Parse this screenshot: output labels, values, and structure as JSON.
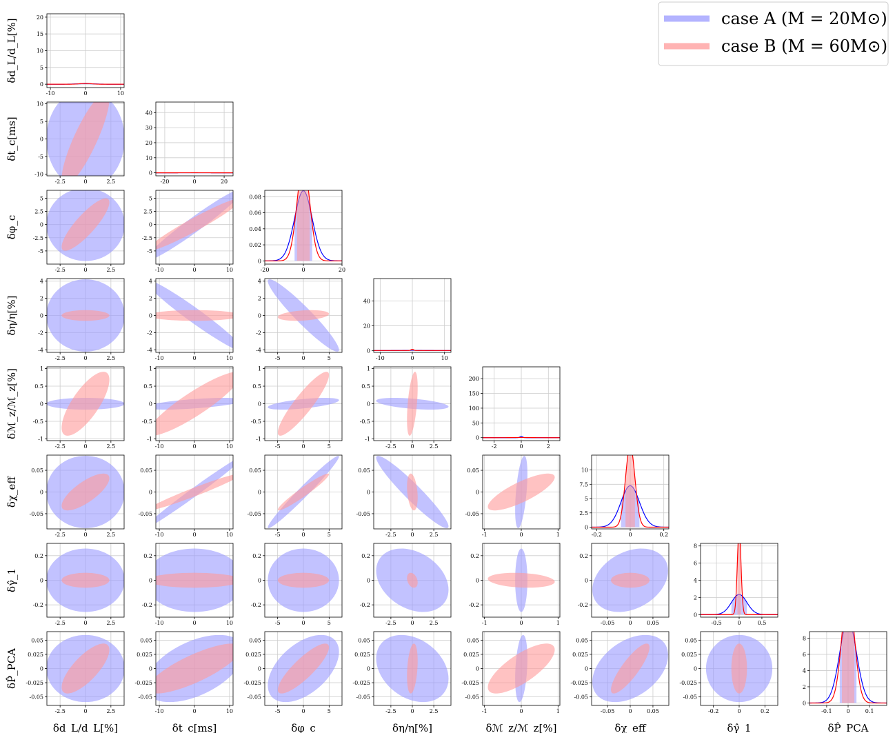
{
  "colors": {
    "case_a": "#0000ff",
    "case_a_fill": "#9999ff",
    "case_b": "#ff0000",
    "case_b_fill": "#ff9999",
    "grid": "#cccccc",
    "frame": "#000000"
  },
  "legend": {
    "placement": "top-right",
    "entries": [
      "case A (M = 20M⊙)",
      "case B (M = 60M⊙)"
    ]
  },
  "chart_data": {
    "type": "corner",
    "grid": true,
    "series": [
      {
        "name": "case A (M = 20M⊙)",
        "sigma": [
          2.54,
          9.3,
          4.56,
          2.78,
          0.11,
          0.055,
          0.17,
          0.039
        ]
      },
      {
        "name": "case B (M = 60M⊙)",
        "sigma": [
          1.55,
          8.8,
          3.28,
          0.41,
          0.6,
          0.028,
          0.04,
          0.029
        ]
      }
    ],
    "parameters": [
      {
        "label": "δd_L/d_L[%]",
        "range": [
          -11,
          11
        ],
        "ticks": [
          -2.5,
          0,
          2.5
        ],
        "hist_ticks": [
          -10.0,
          0.0,
          10.0
        ],
        "hist_ylim": [
          -1,
          21
        ],
        "hist_yticks": [
          0.0,
          5.0,
          10.0,
          15.0,
          20.0
        ]
      },
      {
        "label": "δt_c[ms]",
        "range": [
          -26,
          26
        ],
        "ticks": [
          -10.0,
          0.0,
          10.0
        ],
        "hist_ticks": [
          -20.0,
          0.0,
          20.0
        ],
        "hist_ylim": [
          -2,
          47
        ],
        "hist_yticks": [
          0.0,
          10.0,
          20.0,
          30.0,
          40.0
        ]
      },
      {
        "label": "δφ_c",
        "range": [
          -20,
          20
        ],
        "ticks": [
          -5,
          0,
          5
        ],
        "hist_ticks": [
          -20,
          0,
          20
        ],
        "hist_ylim": [
          -0.004,
          0.088
        ],
        "hist_yticks": [
          0.0,
          0.02,
          0.04,
          0.06,
          0.08
        ]
      },
      {
        "label": "δη/η[%]",
        "range": [
          -12,
          12
        ],
        "ticks": [
          -2.5,
          0.0,
          2.5
        ],
        "hist_ticks": [
          -10.0,
          0.0,
          10.0
        ],
        "hist_ylim": [
          -1.5,
          58
        ],
        "hist_yticks": [
          0.0,
          20.0,
          40.0
        ]
      },
      {
        "label": "δℳ_z/ℳ_z[%]",
        "range": [
          -2.85,
          2.85
        ],
        "ticks": [
          -1.0,
          0.0,
          1.0
        ],
        "hist_ticks": [
          -2.0,
          0.0,
          2.0
        ],
        "hist_ylim": [
          -10,
          240
        ],
        "hist_yticks": [
          0.0,
          50.0,
          100.0,
          150.0,
          200.0
        ]
      },
      {
        "label": "δχ_eff",
        "range": [
          -0.23,
          0.23
        ],
        "ticks": [
          -0.05,
          0.0,
          0.05
        ],
        "hist_ticks": [
          -0.2,
          0.0,
          0.2
        ],
        "hist_ylim": [
          -0.3,
          12.6
        ],
        "hist_yticks": [
          0.0,
          2.5,
          5.0,
          7.5,
          10.0
        ]
      },
      {
        "label": "δγ̂_1",
        "range": [
          -0.85,
          0.85
        ],
        "ticks": [
          -0.2,
          0.0,
          0.2
        ],
        "hist_ticks": [
          -0.5,
          0.0,
          0.5
        ],
        "hist_ylim": [
          -0.3,
          8.3
        ],
        "hist_yticks": [
          0,
          2,
          4,
          6,
          8
        ]
      },
      {
        "label": "δP̂_PCA",
        "range": [
          -0.18,
          0.18
        ],
        "ticks": [
          -0.05,
          0.0,
          0.05
        ],
        "hist_ticks": [
          -0.1,
          0.0,
          0.1
        ],
        "hist_ylim": [
          -0.3,
          8.8
        ],
        "hist_yticks": [
          0,
          2,
          4,
          6,
          8
        ]
      }
    ],
    "pairs": [
      {
        "x": 0,
        "y": 1,
        "xlim": [
          -3.8,
          3.8
        ],
        "ylim": [
          -10.5,
          10.5
        ],
        "yticks": [
          -10.0,
          -5.0,
          0.0,
          5.0,
          10.0
        ],
        "a_rho": 0.0,
        "b_rho": 0.85
      },
      {
        "x": 0,
        "y": 2,
        "xlim": [
          -3.8,
          3.8
        ],
        "ylim": [
          -7.5,
          6.5
        ],
        "yticks": [
          -5.0,
          -2.5,
          0.0,
          2.5,
          5.0
        ],
        "a_rho": 0.0,
        "b_rho": 0.85
      },
      {
        "x": 1,
        "y": 2,
        "xlim": [
          -11,
          11
        ],
        "ylim": [
          -7.5,
          6.5
        ],
        "yticks": [
          -5.0,
          -2.5,
          0.0,
          2.5,
          5.0
        ],
        "a_rho": 0.97,
        "b_rho": 0.96
      },
      {
        "x": 0,
        "y": 3,
        "xlim": [
          -3.8,
          3.8
        ],
        "ylim": [
          -4.3,
          4.3
        ],
        "yticks": [
          -4.0,
          -2.0,
          0.0,
          2.0,
          4.0
        ],
        "a_rho": 0.0,
        "b_rho": 0.0
      },
      {
        "x": 1,
        "y": 3,
        "xlim": [
          -11,
          11
        ],
        "ylim": [
          -4.3,
          4.3
        ],
        "yticks": [
          -4.0,
          -2.0,
          0.0,
          2.0,
          4.0
        ],
        "a_rho": -0.97,
        "b_rho": 0.0
      },
      {
        "x": 2,
        "y": 3,
        "xlim": [
          -7.5,
          7.5
        ],
        "ylim": [
          -4.3,
          4.3
        ],
        "yticks": [
          -4.0,
          -2.0,
          0.0,
          2.0,
          4.0
        ],
        "a_rho": -0.95,
        "b_rho": 0.3
      },
      {
        "x": 0,
        "y": 4,
        "xlim": [
          -3.8,
          3.8
        ],
        "ylim": [
          -1.05,
          1.05
        ],
        "yticks": [
          -1.0,
          -0.5,
          0.0,
          0.5,
          1.0
        ],
        "a_rho": 0.0,
        "b_rho": 0.75
      },
      {
        "x": 1,
        "y": 4,
        "xlim": [
          -11,
          11
        ],
        "ylim": [
          -1.05,
          1.05
        ],
        "yticks": [
          -1.0,
          -0.5,
          0.0,
          0.5,
          1.0
        ],
        "a_rho": 0.6,
        "b_rho": 0.9
      },
      {
        "x": 2,
        "y": 4,
        "xlim": [
          -7.5,
          7.5
        ],
        "ylim": [
          -1.05,
          1.05
        ],
        "yticks": [
          -1.0,
          -0.5,
          0.0,
          0.5,
          1.0
        ],
        "a_rho": 0.6,
        "b_rho": 0.9
      },
      {
        "x": 3,
        "y": 4,
        "xlim": [
          -4.5,
          4.5
        ],
        "ylim": [
          -1.05,
          1.05
        ],
        "yticks": [
          -1.0,
          -0.5,
          0.0,
          0.5,
          1.0
        ],
        "a_rho": -0.5,
        "b_rho": 0.5
      },
      {
        "x": 0,
        "y": 5,
        "xlim": [
          -3.8,
          3.8
        ],
        "ylim": [
          -0.085,
          0.085
        ],
        "yticks": [
          -0.05,
          0.0,
          0.05
        ],
        "a_rho": 0.0,
        "b_rho": 0.75
      },
      {
        "x": 1,
        "y": 5,
        "xlim": [
          -11,
          11
        ],
        "ylim": [
          -0.085,
          0.085
        ],
        "yticks": [
          -0.05,
          0.0,
          0.05
        ],
        "a_rho": 0.99,
        "b_rho": 0.97
      },
      {
        "x": 2,
        "y": 5,
        "xlim": [
          -7.5,
          7.5
        ],
        "ylim": [
          -0.085,
          0.085
        ],
        "yticks": [
          -0.05,
          0.0,
          0.05
        ],
        "a_rho": 0.98,
        "b_rho": 0.96
      },
      {
        "x": 3,
        "y": 5,
        "xlim": [
          -4.5,
          4.5
        ],
        "ylim": [
          -0.085,
          0.085
        ],
        "yticks": [
          -0.05,
          0.0,
          0.05
        ],
        "a_rho": -0.95,
        "b_rho": -0.3
      },
      {
        "x": 4,
        "y": 5,
        "xlim": [
          -1.05,
          1.05
        ],
        "ylim": [
          -0.085,
          0.085
        ],
        "yticks": [
          -0.05,
          0.0,
          0.05
        ],
        "a_rho": 0.5,
        "b_rho": 0.8
      },
      {
        "x": 0,
        "y": 6,
        "xlim": [
          -3.8,
          3.8
        ],
        "ylim": [
          -0.3,
          0.3
        ],
        "yticks": [
          -0.2,
          0.0,
          0.2
        ],
        "a_rho": 0.0,
        "b_rho": 0.0
      },
      {
        "x": 1,
        "y": 6,
        "xlim": [
          -11,
          11
        ],
        "ylim": [
          -0.3,
          0.3
        ],
        "yticks": [
          -0.2,
          0.0,
          0.2
        ],
        "a_rho": 0.0,
        "b_rho": 0.0
      },
      {
        "x": 2,
        "y": 6,
        "xlim": [
          -7.5,
          7.5
        ],
        "ylim": [
          -0.3,
          0.3
        ],
        "yticks": [
          -0.2,
          0.0,
          0.2
        ],
        "a_rho": 0.0,
        "b_rho": 0.0
      },
      {
        "x": 3,
        "y": 6,
        "xlim": [
          -4.5,
          4.5
        ],
        "ylim": [
          -0.3,
          0.3
        ],
        "yticks": [
          -0.2,
          0.0,
          0.2
        ],
        "a_rho": -0.3,
        "b_rho": -0.3
      },
      {
        "x": 4,
        "y": 6,
        "xlim": [
          -1.05,
          1.05
        ],
        "ylim": [
          -0.3,
          0.3
        ],
        "yticks": [
          -0.2,
          0.0,
          0.2
        ],
        "a_rho": 0.0,
        "b_rho": -0.2
      },
      {
        "x": 5,
        "y": 6,
        "xlim": [
          -0.085,
          0.085
        ],
        "ylim": [
          -0.3,
          0.3
        ],
        "yticks": [
          -0.2,
          0.0,
          0.2
        ],
        "a_rho": 0.3,
        "b_rho": 0.0
      },
      {
        "x": 0,
        "y": 7,
        "xlim": [
          -3.8,
          3.8
        ],
        "ylim": [
          -0.065,
          0.065
        ],
        "yticks": [
          -0.05,
          -0.025,
          0.0,
          0.025,
          0.05
        ],
        "a_rho": 0.0,
        "b_rho": 0.75
      },
      {
        "x": 1,
        "y": 7,
        "xlim": [
          -11,
          11
        ],
        "ylim": [
          -0.065,
          0.065
        ],
        "yticks": [
          -0.05,
          -0.025,
          0.0,
          0.025,
          0.05
        ],
        "a_rho": 0.5,
        "b_rho": 0.8
      },
      {
        "x": 2,
        "y": 7,
        "xlim": [
          -7.5,
          7.5
        ],
        "ylim": [
          -0.065,
          0.065
        ],
        "yticks": [
          -0.05,
          -0.025,
          0.0,
          0.025,
          0.05
        ],
        "a_rho": 0.5,
        "b_rho": 0.85
      },
      {
        "x": 3,
        "y": 7,
        "xlim": [
          -4.5,
          4.5
        ],
        "ylim": [
          -0.065,
          0.065
        ],
        "yticks": [
          -0.05,
          -0.025,
          0.0,
          0.025,
          0.05
        ],
        "a_rho": -0.3,
        "b_rho": 0.3
      },
      {
        "x": 4,
        "y": 7,
        "xlim": [
          -1.05,
          1.05
        ],
        "ylim": [
          -0.065,
          0.065
        ],
        "yticks": [
          -0.05,
          -0.025,
          0.0,
          0.025,
          0.05
        ],
        "a_rho": 0.3,
        "b_rho": 0.75
      },
      {
        "x": 5,
        "y": 7,
        "xlim": [
          -0.085,
          0.085
        ],
        "ylim": [
          -0.065,
          0.065
        ],
        "yticks": [
          -0.05,
          -0.025,
          0.0,
          0.025,
          0.05
        ],
        "a_rho": 0.4,
        "b_rho": 0.85
      },
      {
        "x": 6,
        "y": 7,
        "xlim": [
          -0.3,
          0.3
        ],
        "ylim": [
          -0.065,
          0.065
        ],
        "yticks": [
          -0.05,
          -0.025,
          0.0,
          0.025,
          0.05
        ],
        "a_rho": 0.0,
        "b_rho": 0.0
      }
    ]
  }
}
